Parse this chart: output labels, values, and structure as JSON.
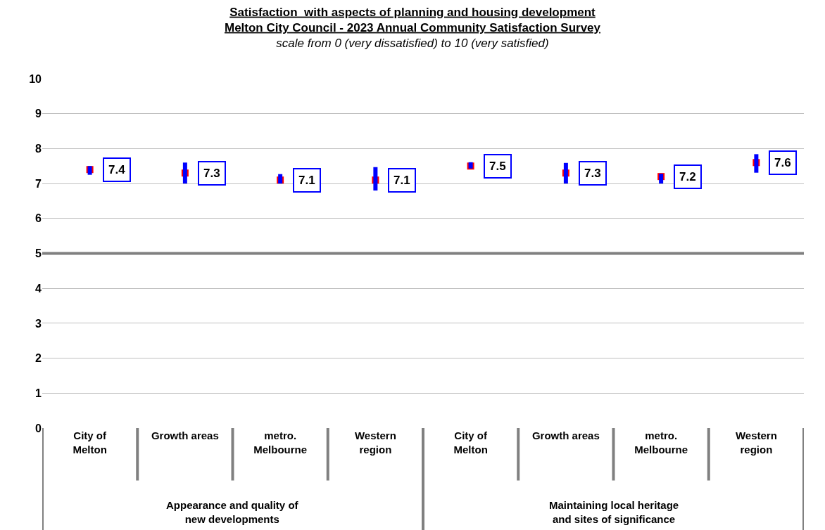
{
  "chart_data": {
    "type": "scatter",
    "title": "Satisfaction  with aspects of planning and housing development\nMelton City Council - 2023 Annual Community Satisfaction Survey",
    "subtitle": "scale from 0 (very dissatisfied) to 10 (very satisfied)",
    "categories": [
      "City of Melton",
      "Growth areas",
      "metro. Melbourne",
      "Western region",
      "City of Melton",
      "Growth areas",
      "metro. Melbourne",
      "Western region"
    ],
    "values": [
      7.4,
      7.3,
      7.1,
      7.1,
      7.5,
      7.3,
      7.2,
      7.6
    ],
    "errors": [
      [
        7.25,
        7.5
      ],
      [
        7.0,
        7.6
      ],
      [
        7.0,
        7.27
      ],
      [
        6.8,
        7.47
      ],
      [
        7.43,
        7.61
      ],
      [
        7.0,
        7.59
      ],
      [
        7.0,
        7.28
      ],
      [
        7.31,
        7.84
      ]
    ],
    "color": "#ff0000",
    "marker": "square",
    "data_labels": true,
    "annotations": [
      "Appearance and quality of new developments",
      "Maintaining local heritage and sites of significance"
    ],
    "ylim": [
      0,
      10
    ],
    "yticks": [
      0,
      1,
      2,
      3,
      4,
      5,
      6,
      7,
      8,
      9,
      10
    ],
    "ref_lines": [
      {
        "axis": "y",
        "value": 5,
        "color": "#808080"
      }
    ],
    "grid": "y"
  }
}
